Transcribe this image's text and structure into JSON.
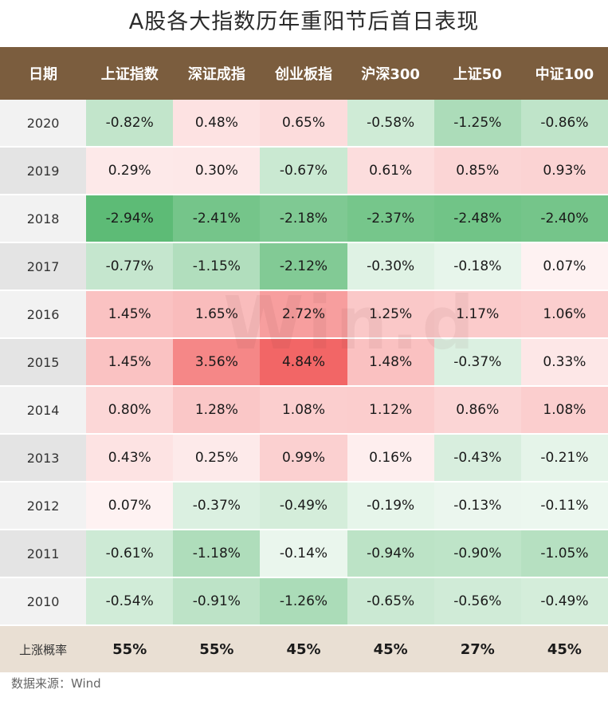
{
  "title": "A股各大指数历年重阳节后首日表现",
  "source_note": "数据来源：Wind",
  "watermark_text": "Win.d",
  "colors": {
    "header_bg": "#7b5d3e",
    "summary_bg": "#e9dfd3",
    "positive": "#f26666",
    "negative": "#5dbb76"
  },
  "chart_data": {
    "type": "heatmap",
    "title": "A股各大指数历年重阳节后首日表现",
    "unit": "%",
    "row_header": "日期",
    "columns": [
      "上证指数",
      "深证成指",
      "创业板指",
      "沪深300",
      "上证50",
      "中证100"
    ],
    "rows": [
      {
        "label": "2020",
        "values": [
          -0.82,
          0.48,
          0.65,
          -0.58,
          -1.25,
          -0.86
        ]
      },
      {
        "label": "2019",
        "values": [
          0.29,
          0.3,
          -0.67,
          0.61,
          0.85,
          0.93
        ]
      },
      {
        "label": "2018",
        "values": [
          -2.94,
          -2.41,
          -2.18,
          -2.37,
          -2.48,
          -2.4
        ]
      },
      {
        "label": "2017",
        "values": [
          -0.77,
          -1.15,
          -2.12,
          -0.3,
          -0.18,
          0.07
        ]
      },
      {
        "label": "2016",
        "values": [
          1.45,
          1.65,
          2.72,
          1.25,
          1.17,
          1.06
        ]
      },
      {
        "label": "2015",
        "values": [
          1.45,
          3.56,
          4.84,
          1.48,
          -0.37,
          0.33
        ]
      },
      {
        "label": "2014",
        "values": [
          0.8,
          1.28,
          1.08,
          1.12,
          0.86,
          1.08
        ]
      },
      {
        "label": "2013",
        "values": [
          0.43,
          0.25,
          0.99,
          0.16,
          -0.43,
          -0.21
        ]
      },
      {
        "label": "2012",
        "values": [
          0.07,
          -0.37,
          -0.49,
          -0.19,
          -0.13,
          -0.11
        ]
      },
      {
        "label": "2011",
        "values": [
          -0.61,
          -1.18,
          -0.14,
          -0.94,
          -0.9,
          -1.05
        ]
      },
      {
        "label": "2010",
        "values": [
          -0.54,
          -0.91,
          -1.26,
          -0.65,
          -0.56,
          -0.49
        ]
      }
    ],
    "summary": {
      "label": "上涨概率",
      "values": [
        "55%",
        "55%",
        "45%",
        "45%",
        "27%",
        "45%"
      ]
    }
  }
}
